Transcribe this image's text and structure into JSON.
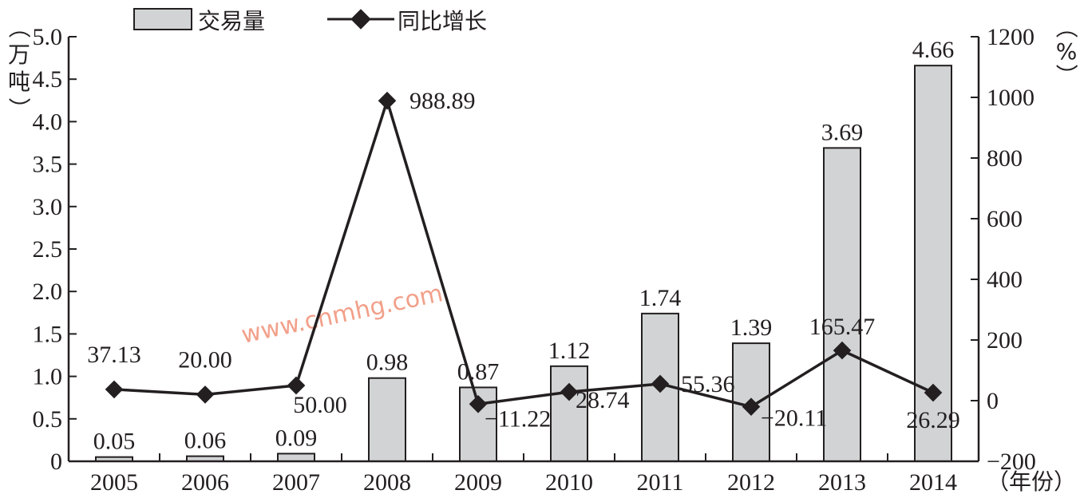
{
  "chart_data": {
    "type": "bar+line",
    "categories": [
      "2005",
      "2006",
      "2007",
      "2008",
      "2009",
      "2010",
      "2011",
      "2012",
      "2013",
      "2014"
    ],
    "series": [
      {
        "name": "交易量",
        "type": "bar",
        "axis": "left",
        "values": [
          0.05,
          0.06,
          0.09,
          0.98,
          0.87,
          1.12,
          1.74,
          1.39,
          3.69,
          4.66
        ],
        "labels": [
          "0.05",
          "0.06",
          "0.09",
          "0.98",
          "0.87",
          "1.12",
          "1.74",
          "1.39",
          "3.69",
          "4.66"
        ],
        "color": "#d1d3d4"
      },
      {
        "name": "同比增长",
        "type": "line",
        "axis": "right",
        "values": [
          37.13,
          20.0,
          50.0,
          988.89,
          -11.22,
          28.74,
          55.36,
          -20.11,
          165.47,
          26.29
        ],
        "labels": [
          "37.13",
          "20.00",
          "50.00",
          "988.89",
          "−11.22",
          "28.74",
          "55.36",
          "−20.11",
          "165.47",
          "26.29"
        ],
        "color": "#231f20"
      }
    ],
    "y_left": {
      "label": "（万吨）",
      "ylim": [
        0,
        5.0
      ],
      "ticks": [
        "0",
        "0.5",
        "1.0",
        "1.5",
        "2.0",
        "2.5",
        "3.0",
        "3.5",
        "4.0",
        "4.5",
        "5.0"
      ]
    },
    "y_right": {
      "label": "（%）",
      "ylim": [
        -200,
        1200
      ],
      "ticks": [
        "−200",
        "0",
        "200",
        "400",
        "600",
        "800",
        "1000",
        "1200"
      ]
    },
    "x_axis": {
      "label": "（年份）"
    },
    "grid": false,
    "legend_position": "top-left",
    "watermark": "www.cnmhg.com"
  }
}
